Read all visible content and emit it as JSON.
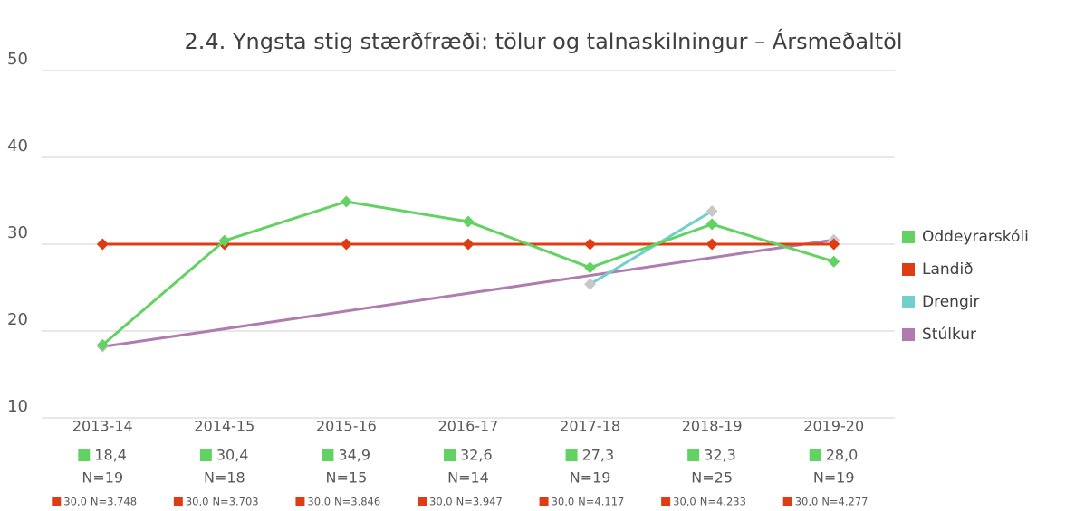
{
  "chart_data": {
    "type": "line",
    "title": "2.4. Yngsta stig stærðfræði: tölur og talnaskilningur – Ársmeðaltöl",
    "categories": [
      "2013-14",
      "2014-15",
      "2015-16",
      "2016-17",
      "2017-18",
      "2018-19",
      "2019-20"
    ],
    "series": [
      {
        "name": "Oddeyrarskóli",
        "color": "#62d262",
        "marker_color": "#62d262",
        "values": [
          18.4,
          30.4,
          34.9,
          32.6,
          27.3,
          32.3,
          28.0
        ],
        "value_labels": [
          "18,4",
          "30,4",
          "34,9",
          "32,6",
          "27,3",
          "32,3",
          "28,0"
        ],
        "n_labels": [
          "N=19",
          "N=18",
          "N=15",
          "N=14",
          "N=19",
          "N=25",
          "N=19"
        ]
      },
      {
        "name": "Landið",
        "color": "#e03c14",
        "marker_color": "#e03c14",
        "values": [
          30,
          30,
          30,
          30,
          30,
          30,
          30
        ],
        "value_labels": [
          "30,0",
          "30,0",
          "30,0",
          "30,0",
          "30,0",
          "30,0",
          "30,0"
        ],
        "n_labels": [
          "N=3.748",
          "N=3.703",
          "N=3.846",
          "N=3.947",
          "N=4.117",
          "N=4.233",
          "N=4.277"
        ]
      },
      {
        "name": "Drengir",
        "color": "#72d0cc",
        "marker_color": "#c8c8c8",
        "values": [
          null,
          null,
          null,
          null,
          25.4,
          33.8,
          null
        ]
      },
      {
        "name": "Stúlkur",
        "color": "#b07cb0",
        "marker_color": "#c8c8c8",
        "values": [
          18.2,
          null,
          null,
          null,
          null,
          null,
          30.5
        ]
      }
    ],
    "connect_gaps": true,
    "ylim": [
      10,
      50
    ],
    "yticks": [
      10,
      20,
      30,
      40,
      50
    ],
    "grid": true,
    "legend": "right"
  }
}
